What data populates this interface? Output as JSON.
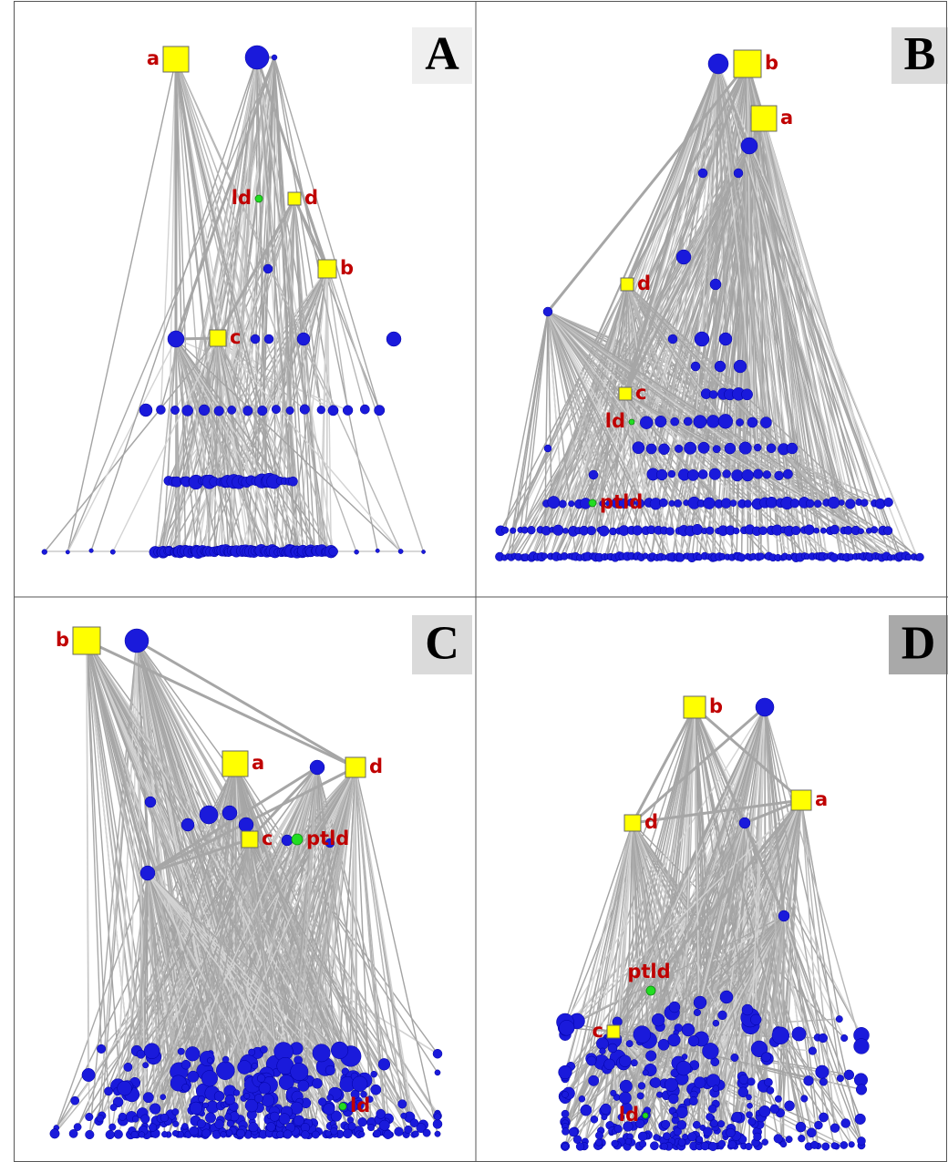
{
  "panels": [
    {
      "label": "A",
      "nodes": [
        "a",
        "ld",
        "d",
        "b",
        "c"
      ]
    },
    {
      "label": "B",
      "nodes": [
        "b",
        "a",
        "d",
        "c",
        "ld",
        "ptld"
      ]
    },
    {
      "label": "C",
      "nodes": [
        "b",
        "a",
        "d",
        "c",
        "ptld",
        "ld"
      ]
    },
    {
      "label": "D",
      "nodes": [
        "b",
        "a",
        "d",
        "ptld",
        "c",
        "ld"
      ]
    }
  ]
}
